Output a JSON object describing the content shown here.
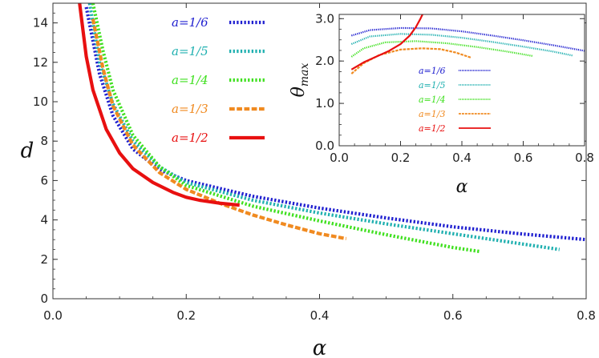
{
  "chart_data": [
    {
      "type": "line",
      "xlabel": "α",
      "ylabel": "d",
      "xlim": [
        0,
        0.8
      ],
      "ylim": [
        0,
        15
      ],
      "xticks": [
        "0.0",
        "0.2",
        "0.4",
        "0.6",
        "0.8"
      ],
      "yticks": [
        "0",
        "2",
        "4",
        "6",
        "8",
        "10",
        "12",
        "14"
      ],
      "series": [
        {
          "name": "a=1/6",
          "color": "#2020d0",
          "dash": "dotted",
          "x": [
            0.05,
            0.07,
            0.09,
            0.12,
            0.16,
            0.2,
            0.3,
            0.4,
            0.5,
            0.6,
            0.7,
            0.8
          ],
          "y": [
            14.8,
            11.4,
            9.3,
            7.6,
            6.55,
            6.0,
            5.2,
            4.6,
            4.1,
            3.65,
            3.3,
            3.0
          ]
        },
        {
          "name": "a=1/5",
          "color": "#20b0b0",
          "dash": "dotted",
          "x": [
            0.055,
            0.07,
            0.09,
            0.12,
            0.16,
            0.2,
            0.3,
            0.4,
            0.5,
            0.6,
            0.7,
            0.76
          ],
          "y": [
            15.0,
            12.0,
            9.9,
            8.0,
            6.7,
            5.9,
            5.0,
            4.35,
            3.8,
            3.3,
            2.8,
            2.5
          ]
        },
        {
          "name": "a=1/4",
          "color": "#40e020",
          "dash": "dotted",
          "x": [
            0.06,
            0.075,
            0.09,
            0.12,
            0.16,
            0.2,
            0.3,
            0.4,
            0.5,
            0.6,
            0.64
          ],
          "y": [
            15.0,
            12.6,
            10.6,
            8.3,
            6.7,
            5.75,
            4.7,
            3.95,
            3.25,
            2.6,
            2.4
          ]
        },
        {
          "name": "a=1/3",
          "color": "#f08a20",
          "dash": "dashed",
          "x": [
            0.06,
            0.075,
            0.09,
            0.12,
            0.16,
            0.2,
            0.25,
            0.3,
            0.35,
            0.4,
            0.44
          ],
          "y": [
            14.2,
            11.7,
            9.8,
            7.8,
            6.4,
            5.55,
            4.85,
            4.25,
            3.75,
            3.3,
            3.05
          ]
        },
        {
          "name": "a=1/2",
          "color": "#e81010",
          "dash": "solid",
          "x": [
            0.04,
            0.05,
            0.06,
            0.08,
            0.1,
            0.12,
            0.15,
            0.18,
            0.2,
            0.22,
            0.25,
            0.28
          ],
          "y": [
            15.0,
            12.3,
            10.6,
            8.6,
            7.4,
            6.6,
            5.9,
            5.4,
            5.15,
            5.0,
            4.85,
            4.75
          ]
        }
      ]
    },
    {
      "type": "line",
      "xlabel": "α",
      "ylabel": "θmax",
      "xlim": [
        0,
        0.8
      ],
      "ylim": [
        0,
        3.1
      ],
      "xticks": [
        "0.0",
        "0.2",
        "0.4",
        "0.6",
        "0.8"
      ],
      "yticks": [
        "0.0",
        "1.0",
        "2.0",
        "3.0"
      ],
      "series": [
        {
          "name": "a=1/6",
          "color": "#2020d0",
          "dash": "dotted",
          "x": [
            0.04,
            0.1,
            0.2,
            0.3,
            0.4,
            0.5,
            0.6,
            0.7,
            0.8
          ],
          "y": [
            2.6,
            2.73,
            2.78,
            2.77,
            2.7,
            2.6,
            2.49,
            2.37,
            2.24
          ]
        },
        {
          "name": "a=1/5",
          "color": "#20b0b0",
          "dash": "dotted",
          "x": [
            0.04,
            0.1,
            0.2,
            0.3,
            0.4,
            0.5,
            0.6,
            0.7,
            0.76
          ],
          "y": [
            2.4,
            2.58,
            2.64,
            2.62,
            2.55,
            2.45,
            2.34,
            2.22,
            2.13
          ]
        },
        {
          "name": "a=1/4",
          "color": "#40e020",
          "dash": "dotted",
          "x": [
            0.04,
            0.08,
            0.15,
            0.25,
            0.35,
            0.45,
            0.55,
            0.63
          ],
          "y": [
            2.1,
            2.3,
            2.44,
            2.47,
            2.42,
            2.33,
            2.22,
            2.12
          ]
        },
        {
          "name": "a=1/3",
          "color": "#f08a20",
          "dash": "dashed",
          "x": [
            0.04,
            0.08,
            0.13,
            0.2,
            0.27,
            0.33,
            0.38,
            0.43
          ],
          "y": [
            1.7,
            1.95,
            2.14,
            2.27,
            2.3,
            2.28,
            2.2,
            2.08
          ]
        },
        {
          "name": "a=1/2",
          "color": "#e81010",
          "dash": "solid",
          "x": [
            0.04,
            0.08,
            0.12,
            0.16,
            0.2,
            0.23,
            0.25,
            0.265,
            0.275,
            0.28
          ],
          "y": [
            1.8,
            1.97,
            2.1,
            2.23,
            2.4,
            2.6,
            2.8,
            3.0,
            3.15,
            3.25
          ]
        }
      ]
    }
  ]
}
